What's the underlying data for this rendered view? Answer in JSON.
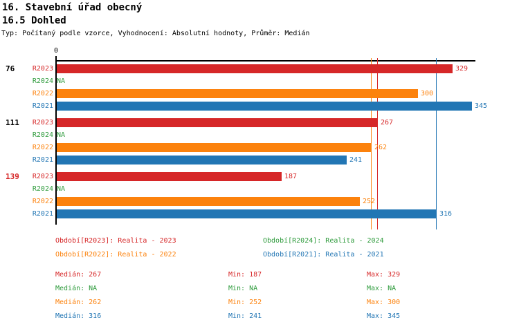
{
  "header": {
    "title": "16. Stavební úřad obecný",
    "subtitle": "16.5 Dohled",
    "meta": "Typ: Počítaný podle vzorce, Vyhodnocení: Absolutní hodnoty, Průměr: Medián"
  },
  "series_colors": {
    "R2023": "#d62728",
    "R2024": "#2e9b3c",
    "R2022": "#fc820d",
    "R2021": "#2276b4"
  },
  "highlight_label_color": "#d62728",
  "chart_data": {
    "type": "bar",
    "orientation": "horizontal",
    "title": "16.5 Dohled",
    "axis": {
      "min": 0,
      "max": 348,
      "origin_tick_label": "0",
      "grid": false
    },
    "na_label": "NA",
    "series_order": [
      "R2023",
      "R2024",
      "R2022",
      "R2021"
    ],
    "groups": [
      {
        "label": "76",
        "highlight": false,
        "values": {
          "R2023": 329,
          "R2024": null,
          "R2022": 300,
          "R2021": 345
        }
      },
      {
        "label": "111",
        "highlight": false,
        "values": {
          "R2023": 267,
          "R2024": null,
          "R2022": 262,
          "R2021": 241
        }
      },
      {
        "label": "139",
        "highlight": true,
        "values": {
          "R2023": 187,
          "R2024": null,
          "R2022": 252,
          "R2021": 316
        }
      }
    ],
    "median_lines": [
      {
        "series": "R2023",
        "value": 267
      },
      {
        "series": "R2022",
        "value": 262
      },
      {
        "series": "R2021",
        "value": 316
      }
    ]
  },
  "legend": {
    "items": [
      {
        "series": "R2023",
        "text": "Období[R2023]: Realita - 2023",
        "col": 0,
        "row": 0
      },
      {
        "series": "R2024",
        "text": "Období[R2024]: Realita - 2024",
        "col": 1,
        "row": 0
      },
      {
        "series": "R2022",
        "text": "Období[R2022]: Realita - 2022",
        "col": 0,
        "row": 1
      },
      {
        "series": "R2021",
        "text": "Období[R2021]: Realita - 2021",
        "col": 1,
        "row": 1
      }
    ]
  },
  "stats": {
    "labels": {
      "median": "Medián",
      "min": "Min",
      "max": "Max"
    },
    "rows": [
      {
        "series": "R2023",
        "median": "267",
        "min": "187",
        "max": "329"
      },
      {
        "series": "R2024",
        "median": "NA",
        "min": "NA",
        "max": "NA"
      },
      {
        "series": "R2022",
        "median": "262",
        "min": "252",
        "max": "300"
      },
      {
        "series": "R2021",
        "median": "316",
        "min": "241",
        "max": "345"
      }
    ]
  }
}
